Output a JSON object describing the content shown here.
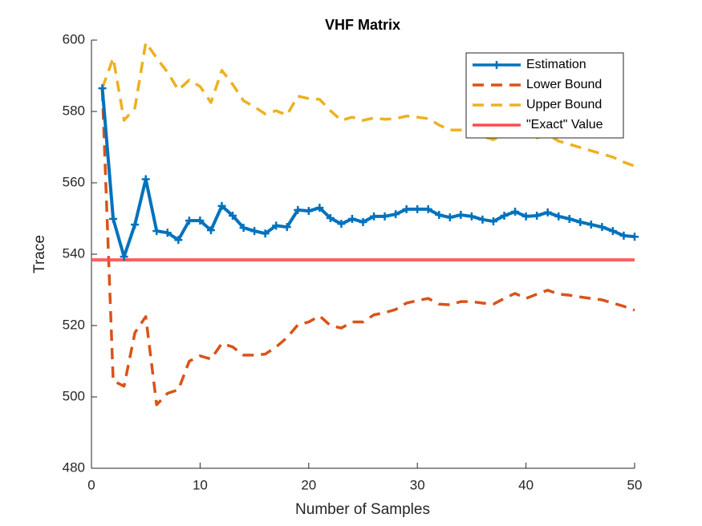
{
  "chart_data": {
    "type": "line",
    "title": "VHF Matrix",
    "x_label": "Number of Samples",
    "y_label": "Trace",
    "x": [
      1,
      2,
      3,
      4,
      5,
      6,
      7,
      8,
      9,
      10,
      11,
      12,
      13,
      14,
      15,
      16,
      17,
      18,
      19,
      20,
      21,
      22,
      23,
      24,
      25,
      26,
      27,
      28,
      29,
      30,
      31,
      32,
      33,
      34,
      35,
      36,
      37,
      38,
      39,
      40,
      41,
      42,
      43,
      44,
      45,
      46,
      47,
      48,
      49,
      50
    ],
    "series": [
      {
        "name": "Estimation",
        "color": "#0072bd",
        "style": "solid",
        "marker": "+",
        "values": [
          586.5,
          549.9,
          539.3,
          548.3,
          561,
          546.5,
          546,
          544,
          549.4,
          549.4,
          546.7,
          553.5,
          550.8,
          547.4,
          546.5,
          545.8,
          548,
          547.6,
          552.4,
          552.1,
          553,
          550.1,
          548.5,
          549.9,
          549,
          550.6,
          550.6,
          551.2,
          552.6,
          552.6,
          552.6,
          551,
          550.3,
          551,
          550.6,
          549.7,
          549.2,
          550.8,
          551.9,
          550.6,
          550.8,
          551.7,
          550.6,
          549.9,
          549,
          548.3,
          547.6,
          546.5,
          545.2,
          544.9
        ]
      },
      {
        "name": "Lower Bound",
        "color": "#d95319",
        "style": "dashed",
        "values": [
          586,
          504.5,
          503,
          518,
          522.5,
          497.8,
          501,
          502,
          510,
          511.5,
          510.6,
          515,
          514,
          511.7,
          511.7,
          512,
          514,
          516.6,
          520.2,
          521,
          522.7,
          520,
          519.3,
          521,
          521,
          523,
          523.6,
          524.5,
          526.3,
          527,
          527.6,
          526,
          525.8,
          526.7,
          526.7,
          526.3,
          526,
          527.6,
          529,
          527.6,
          528.8,
          529.9,
          528.8,
          528.5,
          528,
          527.6,
          527.2,
          526.3,
          525.4,
          524.3
        ]
      },
      {
        "name": "Upper Bound",
        "color": "#edb120",
        "style": "dashed",
        "values": [
          586.5,
          595,
          577.5,
          581,
          599.3,
          595,
          591,
          586,
          588.8,
          587,
          582.5,
          591.5,
          587.6,
          583,
          581.3,
          579.3,
          580.2,
          579,
          584.3,
          583.6,
          583.4,
          580.2,
          577.5,
          578.4,
          577.5,
          578.2,
          577.8,
          578,
          578.7,
          578.4,
          578,
          576.2,
          574.8,
          574.8,
          574.2,
          573,
          572.1,
          573.7,
          575.3,
          573.5,
          572.6,
          573.5,
          571.7,
          570.8,
          569.9,
          569,
          568.1,
          567.2,
          565.8,
          564.7
        ]
      },
      {
        "name": "\"Exact\" Value",
        "color": "#ff4d4d",
        "style": "solid",
        "x": [
          0,
          50
        ],
        "values": [
          538.4,
          538.4
        ]
      }
    ],
    "xlim": [
      0,
      50
    ],
    "xticks": [
      0,
      10,
      20,
      30,
      40,
      50
    ],
    "ylim": [
      480,
      600
    ],
    "yticks": [
      480,
      500,
      520,
      540,
      560,
      580,
      600
    ],
    "legend": "upper right"
  }
}
